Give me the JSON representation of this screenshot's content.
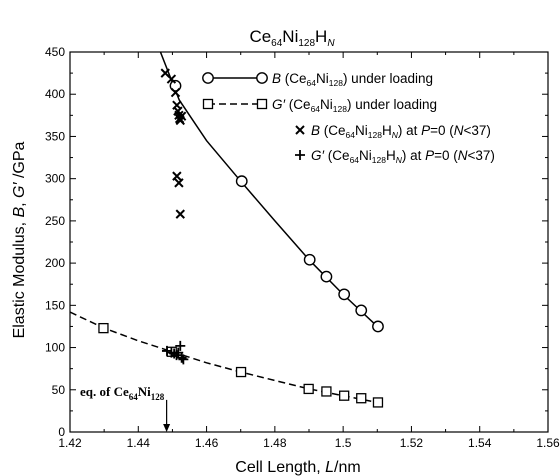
{
  "chart_data": {
    "type": "line",
    "title": {
      "base": "Ce",
      "sub1": "64",
      "mid": "Ni",
      "sub2": "128",
      "mid2": "H",
      "sub3": "N"
    },
    "xlabel": {
      "text": "Cell Length, ",
      "var": "L",
      "unit": "/nm"
    },
    "ylabel": {
      "text": "Elastic Modulus, ",
      "var1": "B",
      "sep": ", ",
      "var2": "G′",
      "unit": " /GPa"
    },
    "xlim": [
      1.42,
      1.56
    ],
    "ylim": [
      0,
      450
    ],
    "xticks": [
      "1.42",
      "1.44",
      "1.46",
      "1.48",
      "1.5",
      "1.52",
      "1.54",
      "1.56"
    ],
    "yticks": [
      "0",
      "50",
      "100",
      "150",
      "200",
      "250",
      "300",
      "350",
      "400",
      "450"
    ],
    "grid": false,
    "legend_position": "top-right",
    "series": [
      {
        "key": "B_loading",
        "marker": "circle",
        "line": "solid",
        "x": [
          1.4509,
          1.4703,
          1.4902,
          1.4951,
          1.5003,
          1.5053,
          1.5102
        ],
        "y": [
          410,
          297,
          204,
          184,
          163,
          144,
          125
        ],
        "fit_x": [
          1.446,
          1.452,
          1.46,
          1.47,
          1.48,
          1.49,
          1.5,
          1.51
        ],
        "fit_y": [
          455,
          393,
          345,
          297,
          250,
          204,
          163,
          125
        ],
        "legend": {
          "var": "B",
          "pre": " (Ce",
          "s1": "64",
          "mid": "Ni",
          "s2": "128",
          "post": ") under loading"
        }
      },
      {
        "key": "G_loading",
        "marker": "square",
        "line": "dashed",
        "x": [
          1.4298,
          1.4498,
          1.4701,
          1.4899,
          1.4951,
          1.5003,
          1.5053,
          1.5102
        ],
        "y": [
          123,
          95,
          71,
          51,
          48,
          43,
          40,
          35
        ],
        "fit_x": [
          1.42,
          1.43,
          1.44,
          1.45,
          1.46,
          1.47,
          1.48,
          1.49,
          1.5,
          1.51
        ],
        "fit_y": [
          142,
          123,
          108,
          95,
          82,
          71,
          61,
          51,
          43,
          35
        ],
        "legend": {
          "var": "G′",
          "pre": " (Ce",
          "s1": "64",
          "mid": "Ni",
          "s2": "128",
          "post": ") under loading"
        }
      },
      {
        "key": "B_hydride",
        "marker": "cross",
        "line": "none",
        "x": [
          1.4479,
          1.4497,
          1.4509,
          1.4513,
          1.4516,
          1.4519,
          1.4521,
          1.4523,
          1.4513,
          1.4519,
          1.4523,
          1.4527
        ],
        "y": [
          425,
          418,
          402,
          387,
          380,
          375,
          371,
          369,
          303,
          295,
          258,
          374
        ],
        "legend": {
          "var": "B",
          "pre": " (Ce",
          "s1": "64",
          "mid": "Ni",
          "s2": "128",
          "mid2": "H",
          "s3": "N",
          "post1": ") at ",
          "pvar": "P",
          "post2": "=0 (",
          "nvar": "N",
          "post3": "<37)"
        }
      },
      {
        "key": "G_hydride",
        "marker": "plus",
        "line": "none",
        "x": [
          1.4484,
          1.4497,
          1.4505,
          1.4512,
          1.4517,
          1.4523,
          1.4527,
          1.4532
        ],
        "y": [
          96,
          94,
          93,
          91,
          94,
          102,
          88,
          86
        ],
        "legend": {
          "var": "G′",
          "pre": " (Ce",
          "s1": "64",
          "mid": "Ni",
          "s2": "128",
          "mid2": "H",
          "s3": "N",
          "post1": ") at ",
          "pvar": "P",
          "post2": "=0 (",
          "nvar": "N",
          "post3": "<37)"
        }
      }
    ],
    "annotation": {
      "text": "eq. of Ce",
      "s1": "64",
      "mid": "Ni",
      "s2": "128",
      "arrow_x": 1.4483,
      "arrow_from_y": 38,
      "arrow_to_y": 0
    }
  }
}
